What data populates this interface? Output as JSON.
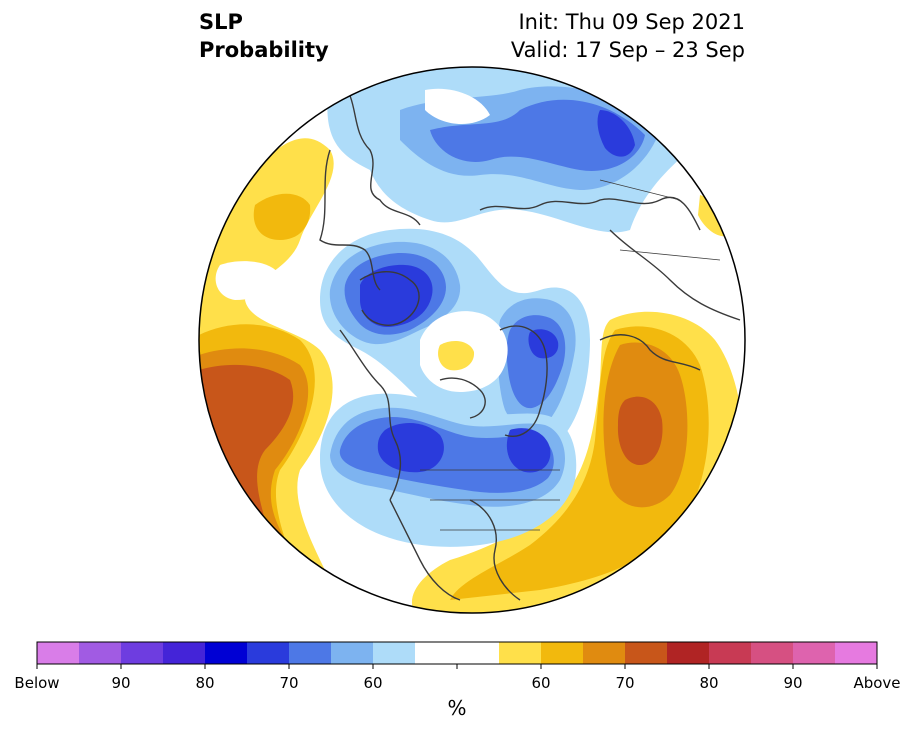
{
  "header": {
    "variable": "SLP",
    "product": "Probability",
    "init": "Init: Thu 09 Sep 2021",
    "valid": "Valid: 17 Sep – 23 Sep"
  },
  "colors": {
    "below": [
      "#d97de8",
      "#a15be3",
      "#6e3de0",
      "#4424d8",
      "#0000d4",
      "#2a3bdc",
      "#4d78e6",
      "#7db3f0",
      "#aedcf9"
    ],
    "neutral": "#ffffff",
    "above": [
      "#ffe04a",
      "#f2b90d",
      "#e08b10",
      "#c8561a",
      "#b02424",
      "#c83a54",
      "#d65082",
      "#de63ae",
      "#e67ae0"
    ]
  },
  "colorbar": {
    "tick_labels": [
      "Below",
      "90",
      "80",
      "70",
      "60",
      "",
      "60",
      "70",
      "80",
      "90",
      "Above"
    ],
    "unit": "%"
  }
}
